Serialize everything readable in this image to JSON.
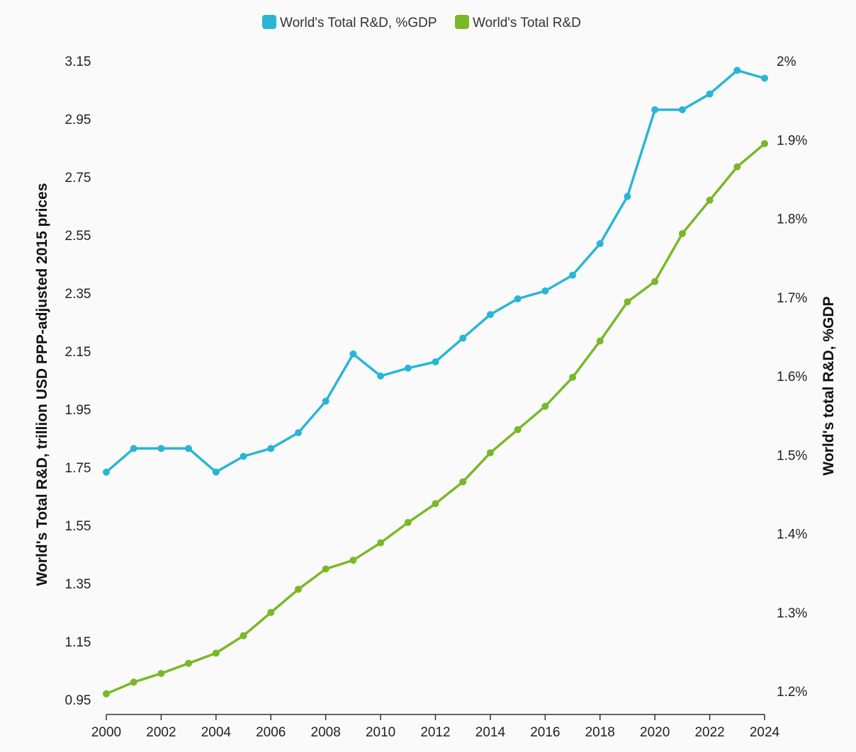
{
  "chart_data": {
    "type": "line",
    "x": [
      2000,
      2001,
      2002,
      2003,
      2004,
      2005,
      2006,
      2007,
      2008,
      2009,
      2010,
      2011,
      2012,
      2013,
      2014,
      2015,
      2016,
      2017,
      2018,
      2019,
      2020,
      2021,
      2022,
      2023,
      2024
    ],
    "x_ticks": [
      "2000",
      "2002",
      "2004",
      "2006",
      "2008",
      "2010",
      "2012",
      "2014",
      "2016",
      "2018",
      "2020",
      "2022",
      "2024"
    ],
    "xlim": [
      2000,
      2024
    ],
    "ylabel": "World's Total R&D, trillion USD PPP-adjusted 2015 prices",
    "ylim": [
      0.95,
      3.15
    ],
    "y_ticks": [
      "3.15",
      "2.95",
      "2.75",
      "2.55",
      "2.35",
      "2.15",
      "1.95",
      "1.75",
      "1.55",
      "1.35",
      "1.15",
      "0.95"
    ],
    "y2label": "World's total R&D, %GDP",
    "y2lim": [
      1.2,
      2.0
    ],
    "y2_ticks": [
      "2%",
      "1.9%",
      "1.8%",
      "1.7%",
      "1.6%",
      "1.5%",
      "1.4%",
      "1.3%",
      "1.2%"
    ],
    "grid": false,
    "legend_position": "top-center",
    "series": [
      {
        "name": "World's Total R&D, %GDP",
        "axis": "right",
        "color": "#29b6d6",
        "values": [
          1.478,
          1.508,
          1.508,
          1.508,
          1.478,
          1.498,
          1.508,
          1.528,
          1.568,
          1.628,
          1.6,
          1.61,
          1.618,
          1.648,
          1.678,
          1.698,
          1.708,
          1.728,
          1.768,
          1.828,
          1.938,
          1.938,
          1.958,
          1.988,
          1.978
        ]
      },
      {
        "name": "World's Total R&D",
        "axis": "left",
        "color": "#7ab828",
        "values": [
          0.97,
          1.01,
          1.04,
          1.075,
          1.11,
          1.17,
          1.25,
          1.33,
          1.4,
          1.43,
          1.49,
          1.56,
          1.625,
          1.7,
          1.8,
          1.88,
          1.96,
          2.06,
          2.185,
          2.32,
          2.39,
          2.555,
          2.67,
          2.785,
          2.865
        ]
      }
    ]
  }
}
